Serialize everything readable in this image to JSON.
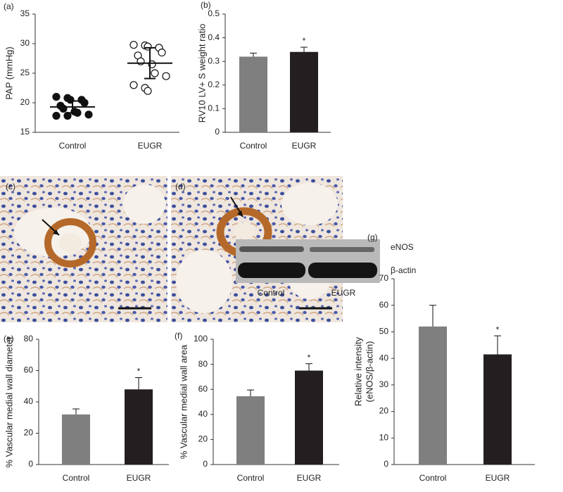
{
  "chart_data": [
    {
      "type": "dot",
      "panel": "(a)",
      "ylabel": [
        "PAP (mmHg)"
      ],
      "categories": [
        "Control",
        "EUGR"
      ],
      "points": [
        [
          21,
          20.8,
          20.5,
          20.5,
          20,
          19.5,
          19,
          18.5,
          18.3,
          18,
          17.8,
          17.8
        ],
        [
          29.8,
          29.7,
          29.5,
          29.3,
          28.5,
          28,
          27,
          26.5,
          25,
          24.5,
          23,
          22.5,
          22
        ]
      ],
      "markers": [
        "filled",
        "open"
      ],
      "means": [
        19.3,
        26.7
      ],
      "sd": [
        1.0,
        2.6
      ],
      "ylim": [
        15,
        35
      ],
      "yticks": [
        15,
        20,
        25,
        30,
        35
      ]
    },
    {
      "type": "bar",
      "panel": "(b)",
      "ylabel": [
        "RV10 LV+ S weight ratio"
      ],
      "categories": [
        "Control",
        "EUGR"
      ],
      "values": [
        0.32,
        0.34
      ],
      "errors": [
        0.015,
        0.02
      ],
      "colors": [
        "#7f7f7f",
        "#231f20"
      ],
      "annotations": [
        null,
        "*"
      ],
      "ylim": [
        0,
        0.5
      ],
      "yticks": [
        0,
        0.1,
        0.2,
        0.3,
        0.4,
        0.5
      ]
    },
    {
      "type": "bar",
      "panel": "(e)",
      "ylabel": [
        "% Vascular medial wall diameter"
      ],
      "categories": [
        "Control",
        "EUGR"
      ],
      "values": [
        32,
        48
      ],
      "errors": [
        3.5,
        7.5
      ],
      "colors": [
        "#7f7f7f",
        "#231f20"
      ],
      "annotations": [
        null,
        "*"
      ],
      "ylim": [
        0,
        80
      ],
      "yticks": [
        0,
        20,
        40,
        60,
        80
      ]
    },
    {
      "type": "bar",
      "panel": "(f)",
      "ylabel": [
        "% Vascular medial wall area"
      ],
      "categories": [
        "Control",
        "EUGR"
      ],
      "values": [
        54.5,
        75
      ],
      "errors": [
        5,
        5.5
      ],
      "colors": [
        "#7f7f7f",
        "#231f20"
      ],
      "annotations": [
        null,
        "*"
      ],
      "ylim": [
        0,
        100
      ],
      "yticks": [
        0,
        20,
        40,
        60,
        80,
        100
      ]
    },
    {
      "type": "bar",
      "ylabel": [
        "Relative intensity",
        "(eNOS/β-actin)"
      ],
      "categories": [
        "Control",
        "EUGR"
      ],
      "values": [
        52,
        41.5
      ],
      "errors": [
        8,
        7
      ],
      "colors": [
        "#7f7f7f",
        "#231f20"
      ],
      "annotations": [
        null,
        "*"
      ],
      "ylim": [
        0,
        70
      ],
      "yticks": [
        0,
        10,
        20,
        30,
        40,
        50,
        60,
        70
      ]
    }
  ],
  "images": [
    {
      "panel": "(c)"
    },
    {
      "panel": "(d)"
    }
  ],
  "blot": {
    "panel": "(g)",
    "bands": [
      "eNOS",
      "β-actin"
    ],
    "lanes": [
      "Control",
      "EUGR"
    ]
  }
}
